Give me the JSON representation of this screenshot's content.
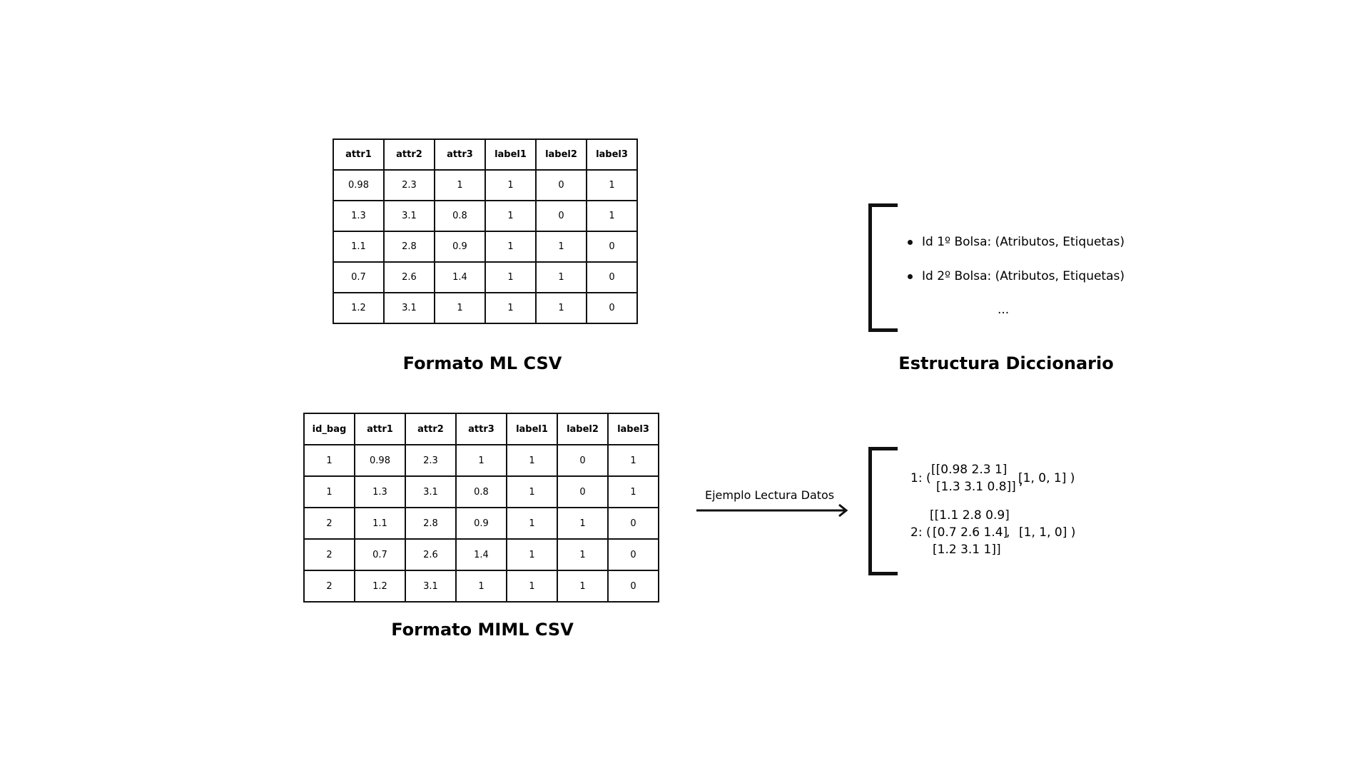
{
  "ml_table": {
    "headers": [
      "attr1",
      "attr2",
      "attr3",
      "label1",
      "label2",
      "label3"
    ],
    "rows": [
      [
        "0.98",
        "2.3",
        "1",
        "1",
        "0",
        "1"
      ],
      [
        "1.3",
        "3.1",
        "0.8",
        "1",
        "0",
        "1"
      ],
      [
        "1.1",
        "2.8",
        "0.9",
        "1",
        "1",
        "0"
      ],
      [
        "0.7",
        "2.6",
        "1.4",
        "1",
        "1",
        "0"
      ],
      [
        "1.2",
        "3.1",
        "1",
        "1",
        "1",
        "0"
      ]
    ],
    "caption": "Formato ML CSV"
  },
  "miml_table": {
    "headers": [
      "id_bag",
      "attr1",
      "attr2",
      "attr3",
      "label1",
      "label2",
      "label3"
    ],
    "rows": [
      [
        "1",
        "0.98",
        "2.3",
        "1",
        "1",
        "0",
        "1"
      ],
      [
        "1",
        "1.3",
        "3.1",
        "0.8",
        "1",
        "0",
        "1"
      ],
      [
        "2",
        "1.1",
        "2.8",
        "0.9",
        "1",
        "1",
        "0"
      ],
      [
        "2",
        "0.7",
        "2.6",
        "1.4",
        "1",
        "1",
        "0"
      ],
      [
        "2",
        "1.2",
        "3.1",
        "1",
        "1",
        "1",
        "0"
      ]
    ],
    "caption": "Formato MIML CSV"
  },
  "dictionary": {
    "items": [
      "Id 1º Bolsa: (Atributos, Etiquetas)",
      "Id 2º Bolsa: (Atributos, Etiquetas)"
    ],
    "ellipsis": "...",
    "caption": "Estructura Diccionario"
  },
  "arrow": {
    "label": "Ejemplo Lectura Datos"
  },
  "example": {
    "bag1_prefix": "1: (",
    "bag1_attr_line1": "[[0.98 2.3 1]",
    "bag1_attr_line2": "[1.3 3.1 0.8]]",
    "bag1_comma": ",",
    "bag1_labels": "[1, 0, 1] )",
    "bag2_attr_line1": "[[1.1 2.8 0.9]",
    "bag2_prefix": "2: (",
    "bag2_attr_line2": "[0.7 2.6 1.4]",
    "bag2_comma": ",",
    "bag2_labels": "[1, 1, 0] )",
    "bag2_attr_line3": "[1.2 3.1 1]]"
  }
}
